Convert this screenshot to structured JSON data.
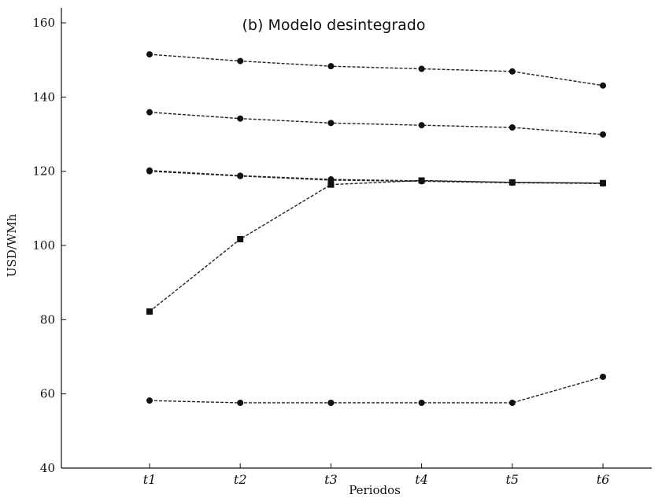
{
  "chart_data": {
    "type": "line",
    "title": "(b) Modelo desintegrado",
    "xlabel": "Periodos",
    "ylabel": "USD/WMh",
    "categories": [
      "t1",
      "t2",
      "t3",
      "t4",
      "t5",
      "t6"
    ],
    "ylim": [
      40,
      160
    ],
    "yticks": [
      40,
      60,
      80,
      100,
      120,
      140,
      160
    ],
    "grid": false,
    "series": [
      {
        "marker": "circle",
        "values": [
          151.5,
          149.7,
          148.3,
          147.6,
          146.9,
          143.1
        ]
      },
      {
        "marker": "circle",
        "values": [
          135.9,
          134.2,
          133.0,
          132.4,
          131.8,
          129.9
        ]
      },
      {
        "marker": "circle",
        "values": [
          120.2,
          118.8,
          117.8,
          117.4,
          117.0,
          116.8
        ]
      },
      {
        "marker": "circle",
        "values": [
          120.0,
          118.7,
          117.6,
          117.3,
          116.9,
          116.7
        ]
      },
      {
        "marker": "square",
        "values": [
          82.2,
          101.7,
          116.4,
          117.5,
          117.0,
          116.8
        ]
      },
      {
        "marker": "circle",
        "values": [
          58.2,
          57.6,
          57.6,
          57.6,
          57.6,
          64.6
        ]
      }
    ]
  }
}
